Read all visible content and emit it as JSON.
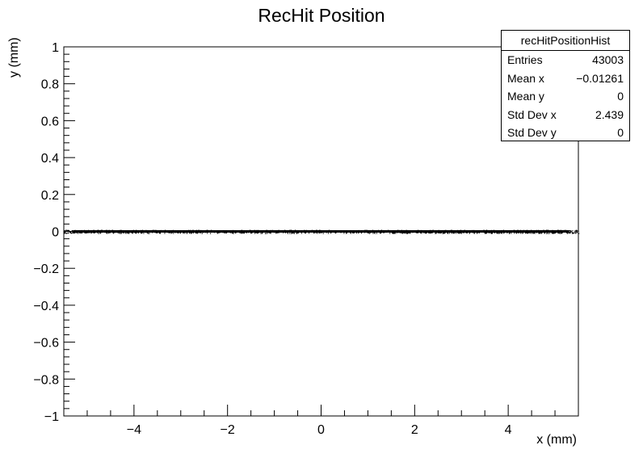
{
  "chart_data": {
    "type": "scatter",
    "title": "RecHit Position",
    "xlabel": "x (mm)",
    "ylabel": "y (mm)",
    "xlim": [
      -5.5,
      5.5
    ],
    "ylim": [
      -1,
      1
    ],
    "x_major_ticks": [
      -4,
      -2,
      0,
      2,
      4
    ],
    "x_tick_labels": [
      "−4",
      "−2",
      "0",
      "2",
      "4"
    ],
    "y_major_ticks": [
      -1,
      -0.8,
      -0.6,
      -0.4,
      -0.2,
      0,
      0.2,
      0.4,
      0.6,
      0.8,
      1
    ],
    "y_tick_labels": [
      "−1",
      "−0.8",
      "−0.6",
      "−0.4",
      "−0.2",
      "0",
      "0.2",
      "0.4",
      "0.6",
      "0.8",
      "1"
    ],
    "points_description_range_x": [
      -5.5,
      5.5
    ],
    "y_value": 0,
    "marker_color": "#000000",
    "grid": false,
    "legend": "none"
  },
  "stats_box": {
    "title": "recHitPositionHist",
    "rows": [
      {
        "key": "Entries",
        "value": "43003"
      },
      {
        "key": "Mean x",
        "value": "−0.01261"
      },
      {
        "key": "Mean y",
        "value": "0"
      },
      {
        "key": "Std Dev x",
        "value": "2.439"
      },
      {
        "key": "Std Dev y",
        "value": "0"
      }
    ]
  }
}
